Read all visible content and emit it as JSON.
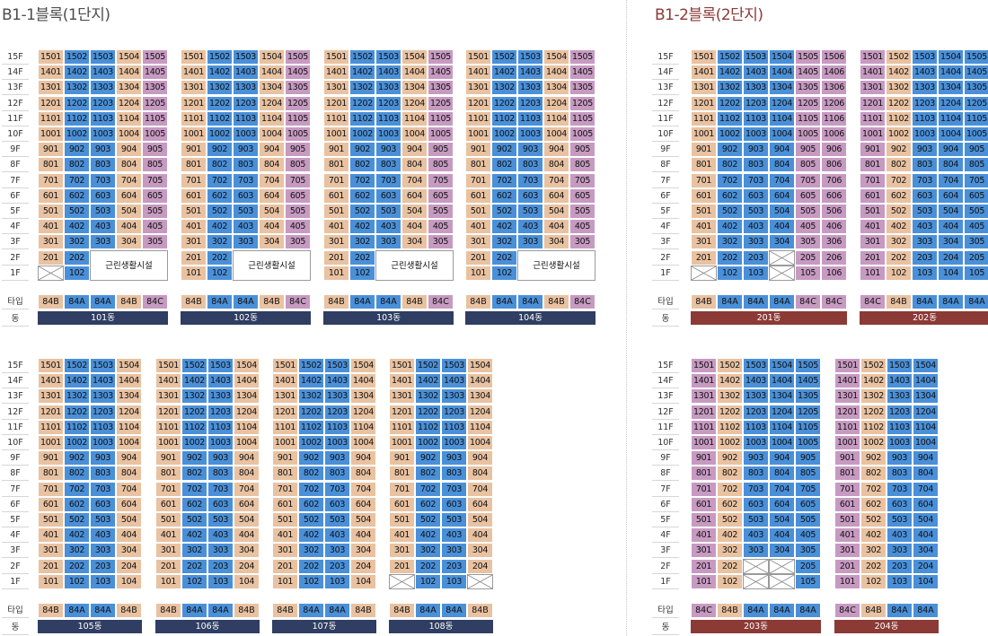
{
  "titles": {
    "block1": "B1-1블록(1단지)",
    "block2": "B1-2블록(2단지)"
  },
  "labels": {
    "type": "타입",
    "dong": "동",
    "facility": "근린생활시설"
  },
  "floors": [
    "15F",
    "14F",
    "13F",
    "12F",
    "11F",
    "10F",
    "9F",
    "8F",
    "7F",
    "6F",
    "5F",
    "4F",
    "3F",
    "2F",
    "1F"
  ],
  "colors": {
    "84A": "#4a90d9",
    "84B": "#e9c2a1",
    "84C": "#c79ac2",
    "dong1": "#2f3e62",
    "dong2": "#8b3a36"
  },
  "buildings": [
    {
      "id": "b101",
      "name": "101동",
      "types": [
        "84B",
        "84A",
        "84A",
        "84B",
        "84C"
      ],
      "f2": [
        "201",
        "202",
        null,
        null,
        null
      ],
      "f1": [
        "X",
        "102",
        null,
        null,
        null
      ],
      "facility": true
    },
    {
      "id": "b102",
      "name": "102동",
      "types": [
        "84B",
        "84A",
        "84A",
        "84B",
        "84C"
      ],
      "f2": [
        "201",
        "202",
        null,
        null,
        null
      ],
      "f1": [
        "101",
        "102",
        null,
        null,
        null
      ],
      "facility": true
    },
    {
      "id": "b103",
      "name": "103동",
      "types": [
        "84B",
        "84A",
        "84A",
        "84B",
        "84C"
      ],
      "f2": [
        "201",
        "202",
        null,
        null,
        null
      ],
      "f1": [
        "101",
        "102",
        null,
        null,
        null
      ],
      "facility": true
    },
    {
      "id": "b104",
      "name": "104동",
      "types": [
        "84B",
        "84A",
        "84A",
        "84B",
        "84C"
      ],
      "f2": [
        "201",
        "202",
        null,
        null,
        null
      ],
      "f1": [
        "101",
        "102",
        null,
        null,
        null
      ],
      "facility": true
    },
    {
      "id": "b105",
      "name": "105동",
      "types": [
        "84B",
        "84A",
        "84A",
        "84B"
      ],
      "f2": [
        "201",
        "202",
        "203",
        "204"
      ],
      "f1": [
        "101",
        "102",
        "103",
        "104"
      ]
    },
    {
      "id": "b106",
      "name": "106동",
      "types": [
        "84B",
        "84A",
        "84A",
        "84B"
      ],
      "f2": [
        "201",
        "202",
        "203",
        "204"
      ],
      "f1": [
        "101",
        "102",
        "103",
        "104"
      ]
    },
    {
      "id": "b107",
      "name": "107동",
      "types": [
        "84B",
        "84A",
        "84A",
        "84B"
      ],
      "f2": [
        "201",
        "202",
        "203",
        "204"
      ],
      "f1": [
        "101",
        "102",
        "103",
        "104"
      ]
    },
    {
      "id": "b108",
      "name": "108동",
      "types": [
        "84B",
        "84A",
        "84A",
        "84B"
      ],
      "f2": [
        "201",
        "202",
        "203",
        "204"
      ],
      "f1": [
        "X",
        "102",
        "103",
        "X"
      ]
    },
    {
      "id": "b201",
      "name": "201동",
      "types": [
        "84B",
        "84A",
        "84A",
        "84A",
        "84C",
        "84C"
      ],
      "f2": [
        "201",
        "202",
        "203",
        "X",
        "205",
        "206"
      ],
      "f1": [
        "X",
        "102",
        "103",
        "X",
        "105",
        "106"
      ]
    },
    {
      "id": "b202",
      "name": "202동",
      "types": [
        "84C",
        "84B",
        "84A",
        "84A",
        "84A"
      ],
      "f2": [
        "201",
        "202",
        "203",
        "204",
        "205"
      ],
      "f1": [
        "101",
        "102",
        "103",
        "104",
        "105"
      ]
    },
    {
      "id": "b203",
      "name": "203동",
      "types": [
        "84C",
        "84B",
        "84A",
        "84A",
        "84A"
      ],
      "f2": [
        "201",
        "202",
        "X",
        "X",
        "205"
      ],
      "f1": [
        "101",
        "102",
        "X",
        "X",
        "105"
      ]
    },
    {
      "id": "b204",
      "name": "204동",
      "types": [
        "84C",
        "84B",
        "84A",
        "84A"
      ],
      "f2": [
        "201",
        "202",
        "203",
        "204"
      ],
      "f1": [
        "101",
        "102",
        "103",
        "104"
      ]
    }
  ]
}
